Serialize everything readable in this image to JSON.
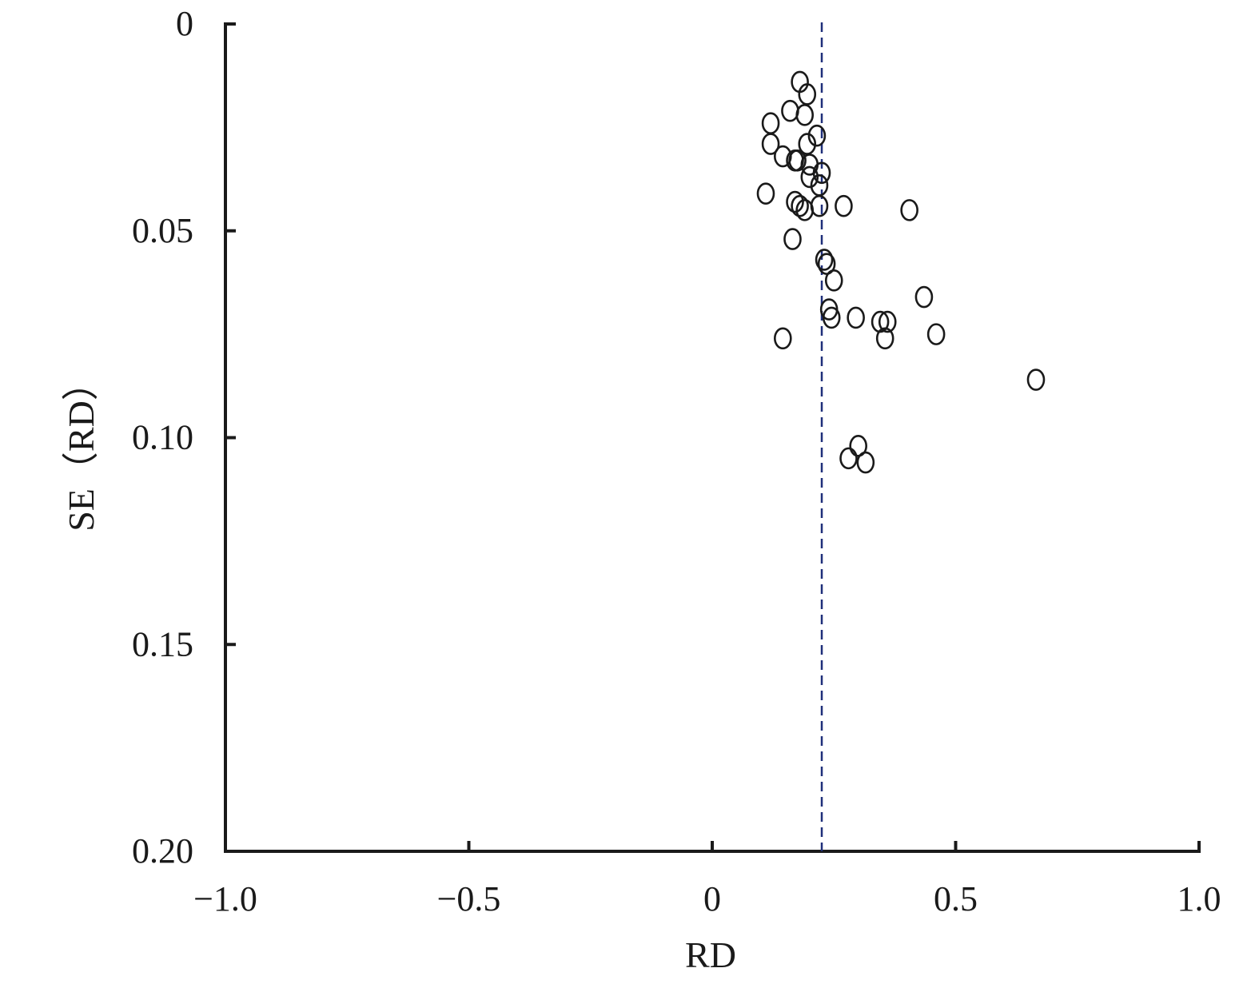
{
  "chart_data": {
    "type": "scatter",
    "title": "",
    "xlabel": "RD",
    "ylabel": "SE（RD）",
    "xlim": [
      -1.0,
      1.0
    ],
    "ylim": [
      0,
      0.2
    ],
    "y_inverted": true,
    "grid": false,
    "legend": "none",
    "x_ticks": [
      {
        "value": -1.0,
        "label": "−1.0"
      },
      {
        "value": -0.5,
        "label": "−0.5"
      },
      {
        "value": 0,
        "label": "0"
      },
      {
        "value": 0.5,
        "label": "0.5"
      },
      {
        "value": 1.0,
        "label": "1.0"
      }
    ],
    "y_ticks": [
      {
        "value": 0,
        "label": "0"
      },
      {
        "value": 0.05,
        "label": "0.05"
      },
      {
        "value": 0.1,
        "label": "0.10"
      },
      {
        "value": 0.15,
        "label": "0.15"
      },
      {
        "value": 0.2,
        "label": "0.20"
      }
    ],
    "reference_line": {
      "x": 0.225,
      "style": "dashed",
      "color": "#1f2f7a"
    },
    "marker_color": "#1a1a1a",
    "axis_color": "#1a1a1a",
    "points": [
      {
        "x": 0.18,
        "y": 0.014
      },
      {
        "x": 0.195,
        "y": 0.017
      },
      {
        "x": 0.16,
        "y": 0.021
      },
      {
        "x": 0.19,
        "y": 0.022
      },
      {
        "x": 0.12,
        "y": 0.024
      },
      {
        "x": 0.215,
        "y": 0.027
      },
      {
        "x": 0.12,
        "y": 0.029
      },
      {
        "x": 0.195,
        "y": 0.029
      },
      {
        "x": 0.145,
        "y": 0.032
      },
      {
        "x": 0.17,
        "y": 0.033
      },
      {
        "x": 0.175,
        "y": 0.033
      },
      {
        "x": 0.2,
        "y": 0.034
      },
      {
        "x": 0.225,
        "y": 0.036
      },
      {
        "x": 0.2,
        "y": 0.037
      },
      {
        "x": 0.22,
        "y": 0.039
      },
      {
        "x": 0.11,
        "y": 0.041
      },
      {
        "x": 0.17,
        "y": 0.043
      },
      {
        "x": 0.18,
        "y": 0.044
      },
      {
        "x": 0.19,
        "y": 0.045
      },
      {
        "x": 0.22,
        "y": 0.044
      },
      {
        "x": 0.27,
        "y": 0.044
      },
      {
        "x": 0.405,
        "y": 0.045
      },
      {
        "x": 0.165,
        "y": 0.052
      },
      {
        "x": 0.23,
        "y": 0.057
      },
      {
        "x": 0.235,
        "y": 0.058
      },
      {
        "x": 0.25,
        "y": 0.062
      },
      {
        "x": 0.435,
        "y": 0.066
      },
      {
        "x": 0.24,
        "y": 0.069
      },
      {
        "x": 0.245,
        "y": 0.071
      },
      {
        "x": 0.295,
        "y": 0.071
      },
      {
        "x": 0.345,
        "y": 0.072
      },
      {
        "x": 0.36,
        "y": 0.072
      },
      {
        "x": 0.46,
        "y": 0.075
      },
      {
        "x": 0.355,
        "y": 0.076
      },
      {
        "x": 0.145,
        "y": 0.076
      },
      {
        "x": 0.665,
        "y": 0.086
      },
      {
        "x": 0.3,
        "y": 0.102
      },
      {
        "x": 0.28,
        "y": 0.105
      },
      {
        "x": 0.315,
        "y": 0.106
      }
    ]
  }
}
